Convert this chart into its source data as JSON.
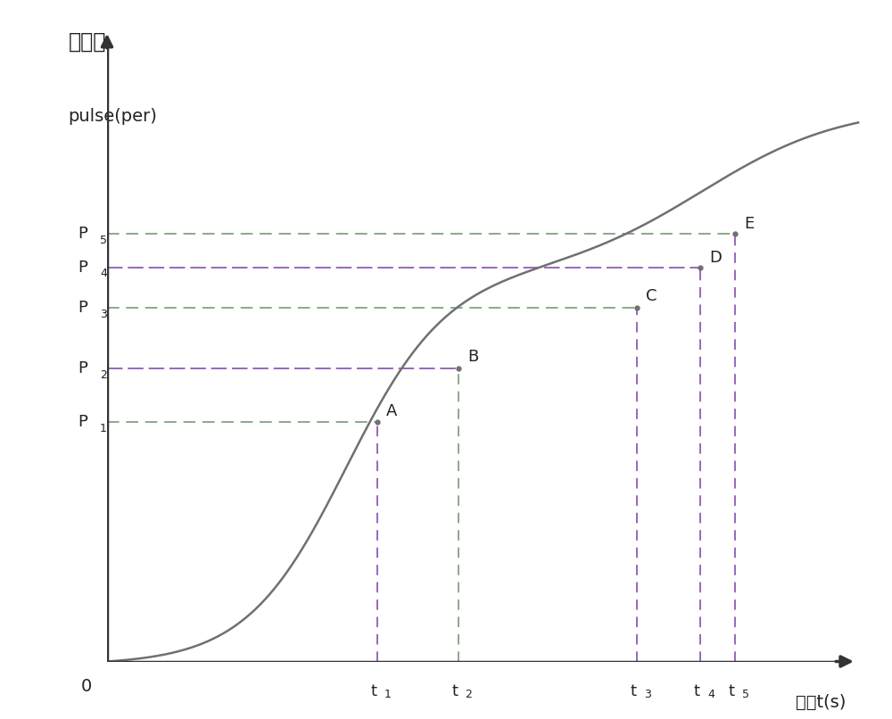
{
  "ylabel_chinese": "脉冲数",
  "ylabel_english": "pulse(per)",
  "xlabel": "时间t(s)",
  "origin_label": "0",
  "p_labels_base": [
    "P",
    "P",
    "P",
    "P",
    "P"
  ],
  "p_subs": [
    "1",
    "2",
    "3",
    "4",
    "5"
  ],
  "p_values": [
    0.355,
    0.435,
    0.525,
    0.585,
    0.635
  ],
  "t_subs": [
    "1",
    "2",
    "3",
    "4",
    "5"
  ],
  "t_values": [
    0.385,
    0.5,
    0.755,
    0.845,
    0.895
  ],
  "point_labels": [
    "A",
    "B",
    "C",
    "D",
    "E"
  ],
  "curve_color": "#707070",
  "h_colors": [
    "#88AA88",
    "#9966BB",
    "#88AA88",
    "#9966BB",
    "#88AA88"
  ],
  "v_colors": [
    "#9966BB",
    "#88AA88",
    "#9966BB",
    "#9966BB",
    "#9966BB"
  ],
  "axis_color": "#333333",
  "background_color": "#ffffff",
  "xlim": [
    0.0,
    1.08
  ],
  "ylim": [
    0.0,
    0.95
  ]
}
